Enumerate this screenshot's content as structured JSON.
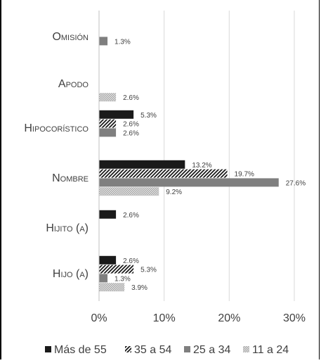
{
  "chart_data": {
    "type": "bar",
    "orientation": "horizontal",
    "categories": [
      "Omisión",
      "Apodo",
      "Hipocorístico",
      "Nombre",
      "Hijito (a)",
      "Hijo (a)"
    ],
    "series": [
      {
        "name": "Más de 55",
        "values": [
          null,
          null,
          5.3,
          13.2,
          2.6,
          2.6
        ],
        "labels": [
          "",
          "",
          "5.3%",
          "13.2%",
          "2.6%",
          "2.6%"
        ],
        "color": "#1a1a1a",
        "pattern": "solid"
      },
      {
        "name": "35 a 54",
        "values": [
          null,
          null,
          2.6,
          19.7,
          null,
          5.3
        ],
        "labels": [
          "",
          "",
          "2.6%",
          "19.7%",
          "",
          "5.3%"
        ],
        "color": "#1a1a1a",
        "pattern": "diagonal"
      },
      {
        "name": "25 a 34",
        "values": [
          1.3,
          null,
          2.6,
          27.6,
          null,
          1.3
        ],
        "labels": [
          "1.3%",
          "",
          "2.6%",
          "27.6%",
          "",
          "1.3%"
        ],
        "color": "#7f7f7f",
        "pattern": "solid"
      },
      {
        "name": "11 a 24",
        "values": [
          null,
          2.6,
          null,
          9.2,
          null,
          3.9
        ],
        "labels": [
          "",
          "2.6%",
          "",
          "9.2%",
          "",
          "3.9%"
        ],
        "color": "#bfbfbf",
        "pattern": "dots"
      }
    ],
    "xlim": [
      0,
      30
    ],
    "xticks": [
      "0%",
      "10%",
      "20%",
      "30%"
    ],
    "grid": "vertical",
    "legend_position": "bottom",
    "title": ""
  }
}
